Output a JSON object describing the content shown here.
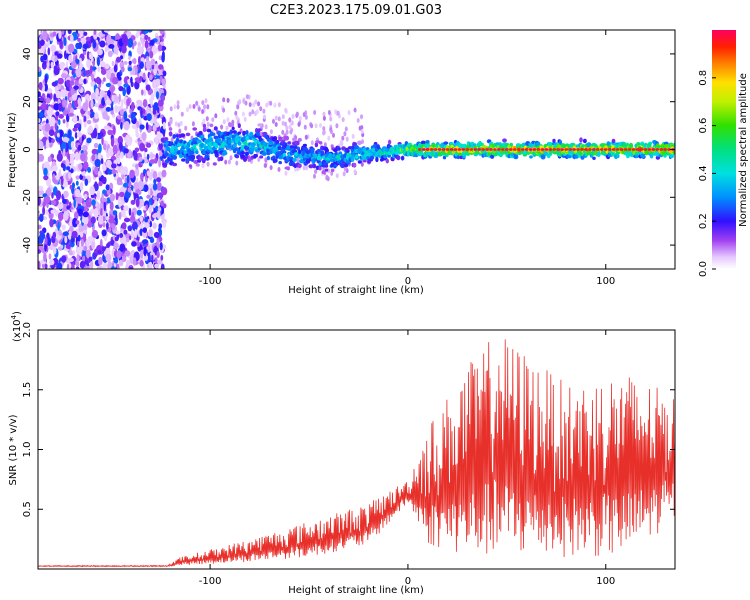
{
  "title": "C2E3.2023.175.09.01.G03",
  "colors": {
    "snr_line": "#e8302b",
    "axis": "#000000"
  },
  "chart_data": [
    {
      "type": "heatmap",
      "name": "spectrogram",
      "xlabel": "Height of straight line (km)",
      "ylabel": "Frequency (Hz)",
      "xlim": [
        -187,
        135
      ],
      "ylim": [
        -50,
        50
      ],
      "xticks": [
        -100,
        0,
        100
      ],
      "yticks": [
        -40,
        -20,
        0,
        20,
        40
      ],
      "xtick_labels": [
        "-100",
        "0",
        "100"
      ],
      "ytick_labels": [
        "-40",
        "-20",
        "0",
        "20",
        "40"
      ],
      "noise_region_x": [
        -187,
        -123
      ],
      "signal_trace": [
        {
          "x": -120,
          "f": 0,
          "spread": 7,
          "amp": 0.45
        },
        {
          "x": -100,
          "f": 2,
          "spread": 7,
          "amp": 0.5
        },
        {
          "x": -80,
          "f": 3,
          "spread": 7,
          "amp": 0.5
        },
        {
          "x": -60,
          "f": -2,
          "spread": 6,
          "amp": 0.45
        },
        {
          "x": -40,
          "f": -4,
          "spread": 5,
          "amp": 0.45
        },
        {
          "x": -25,
          "f": -2,
          "spread": 4,
          "amp": 0.5
        },
        {
          "x": -10,
          "f": -1,
          "spread": 3,
          "amp": 0.6
        },
        {
          "x": 0,
          "f": 0,
          "spread": 3,
          "amp": 0.75
        },
        {
          "x": 10,
          "f": 0,
          "spread": 3,
          "amp": 0.95
        },
        {
          "x": 60,
          "f": 0,
          "spread": 3,
          "amp": 0.95
        },
        {
          "x": 135,
          "f": 0,
          "spread": 3,
          "amp": 0.95
        }
      ],
      "colorbar": {
        "label": "Normalized spectral amplitude",
        "ticks": [
          0.0,
          0.2,
          0.4,
          0.6,
          0.8
        ],
        "tick_labels": [
          "0.0",
          "0.2",
          "0.4",
          "0.6",
          "0.8"
        ],
        "range": [
          0,
          1
        ]
      }
    },
    {
      "type": "line",
      "name": "snr",
      "xlabel": "Height of straight line (km)",
      "ylabel": "SNR (10 * v/v)",
      "y_multiplier": "(x10",
      "y_multiplier_exp": "4",
      "y_multiplier_close": ")",
      "xlim": [
        -187,
        135
      ],
      "ylim": [
        0,
        2.0
      ],
      "xticks": [
        -100,
        0,
        100
      ],
      "yticks": [
        0.5,
        1.0,
        1.5,
        2.0
      ],
      "xtick_labels": [
        "-100",
        "0",
        "100"
      ],
      "ytick_labels": [
        "0.5",
        "1.0",
        "1.5",
        "2.0"
      ],
      "envelope": [
        {
          "x": -187,
          "base": 0.02,
          "peak": 0.03
        },
        {
          "x": -122,
          "base": 0.02,
          "peak": 0.03
        },
        {
          "x": -115,
          "base": 0.03,
          "peak": 0.1
        },
        {
          "x": -80,
          "base": 0.06,
          "peak": 0.25
        },
        {
          "x": -50,
          "base": 0.1,
          "peak": 0.4
        },
        {
          "x": -20,
          "base": 0.2,
          "peak": 0.55
        },
        {
          "x": 0,
          "base": 0.55,
          "peak": 0.75
        },
        {
          "x": 10,
          "base": 0.2,
          "peak": 1.2
        },
        {
          "x": 30,
          "base": 0.1,
          "peak": 1.7
        },
        {
          "x": 45,
          "base": 0.1,
          "peak": 2.0
        },
        {
          "x": 80,
          "base": 0.1,
          "peak": 1.55
        },
        {
          "x": 110,
          "base": 0.1,
          "peak": 1.65
        },
        {
          "x": 135,
          "base": 0.4,
          "peak": 1.45
        }
      ]
    }
  ]
}
